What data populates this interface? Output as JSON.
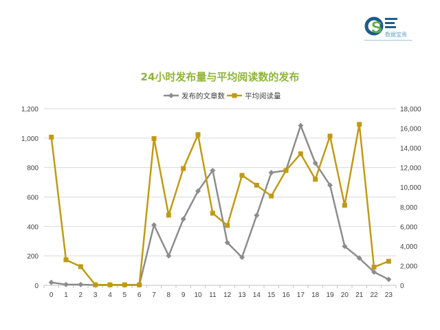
{
  "logo": {
    "caption": "数据宝贵"
  },
  "chart_data": {
    "type": "line",
    "title": "24小时发布量与平均阅读数的发布",
    "categories": [
      "0",
      "1",
      "2",
      "3",
      "4",
      "5",
      "6",
      "7",
      "8",
      "9",
      "10",
      "11",
      "12",
      "13",
      "14",
      "15",
      "16",
      "17",
      "18",
      "19",
      "20",
      "21",
      "22",
      "23"
    ],
    "series": [
      {
        "name": "发布的文章数",
        "axis": "left",
        "color": "#8c8c8c",
        "marker": "diamond",
        "values": [
          20,
          5,
          5,
          2,
          2,
          2,
          2,
          410,
          200,
          450,
          640,
          780,
          290,
          190,
          475,
          765,
          780,
          1085,
          830,
          680,
          265,
          185,
          90,
          40
        ]
      },
      {
        "name": "平均阅读量",
        "axis": "right",
        "color": "#bf9a14",
        "marker": "square",
        "values": [
          15100,
          2600,
          1900,
          50,
          50,
          50,
          50,
          14950,
          7150,
          11900,
          15350,
          7350,
          6100,
          11200,
          10200,
          9100,
          11700,
          13400,
          10800,
          15200,
          8150,
          16400,
          1850,
          2450
        ]
      }
    ],
    "y_left": {
      "min": 0,
      "max": 1200,
      "ticks": [
        "0",
        "200",
        "400",
        "600",
        "800",
        "1,000",
        "1,200"
      ]
    },
    "y_right": {
      "min": 0,
      "max": 18000,
      "ticks": [
        "0",
        "2,000",
        "4,000",
        "6,000",
        "8,000",
        "10,000",
        "12,000",
        "14,000",
        "16,000",
        "18,000"
      ]
    },
    "title_color": "#8fb43a",
    "grid": true,
    "legend": "top"
  }
}
